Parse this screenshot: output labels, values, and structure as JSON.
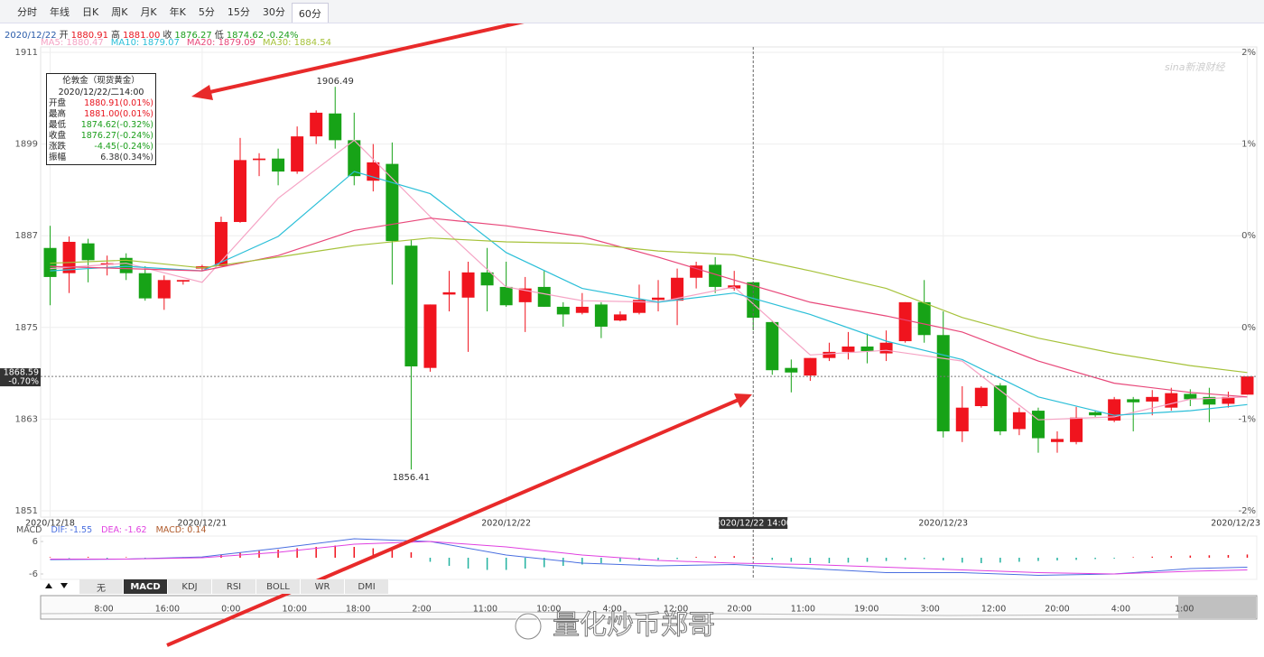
{
  "tabs": [
    "分时",
    "年线",
    "日K",
    "周K",
    "月K",
    "年K",
    "5分",
    "15分",
    "30分",
    "60分"
  ],
  "active_tab": 9,
  "info_line": [
    {
      "text": "2020/12/22",
      "color": "#2a5caa"
    },
    {
      "text": "开",
      "color": "#333333"
    },
    {
      "text": "1880.91",
      "color": "#e8141e"
    },
    {
      "text": "高",
      "color": "#333333"
    },
    {
      "text": "1881.00",
      "color": "#e8141e"
    },
    {
      "text": "收",
      "color": "#333333"
    },
    {
      "text": "1876.27",
      "color": "#1a9e1a"
    },
    {
      "text": "低",
      "color": "#333333"
    },
    {
      "text": "1874.62",
      "color": "#1a9e1a"
    },
    {
      "text": "-0.24%",
      "color": "#1a9e1a"
    }
  ],
  "tooltip": {
    "title": "伦敦金（现货黄金）",
    "time": "2020/12/22/二14:00",
    "rows": [
      {
        "label": "开盘",
        "value": "1880.91(0.01%)",
        "color": "#e8141e"
      },
      {
        "label": "最高",
        "value": "1881.00(0.01%)",
        "color": "#e8141e"
      },
      {
        "label": "最低",
        "value": "1874.62(-0.32%)",
        "color": "#1a9e1a"
      },
      {
        "label": "收盘",
        "value": "1876.27(-0.24%)",
        "color": "#1a9e1a"
      },
      {
        "label": "涨跌",
        "value": "-4.45(-0.24%)",
        "color": "#1a9e1a"
      },
      {
        "label": "振幅",
        "value": "6.38(0.34%)",
        "color": "#333333"
      }
    ]
  },
  "indicator_tabs": [
    "无",
    "MACD",
    "KDJ",
    "RSI",
    "BOLL",
    "WR",
    "DMI"
  ],
  "active_indicator": 1,
  "navigator": {
    "labels": [
      "8:00",
      "16:00",
      "0:00",
      "10:00",
      "18:00",
      "2:00",
      "11:00",
      "10:00",
      "4:00",
      "12:00",
      "20:00",
      "11:00",
      "19:00",
      "3:00",
      "12:00",
      "20:00",
      "4:00",
      "1:00"
    ]
  },
  "watermarks": {
    "source": "sina新浪财经",
    "author": "量化炒币郑哥"
  },
  "chart_data": [
    {
      "type": "candlestick",
      "up_color": "#f0141e",
      "down_color": "#17a317",
      "xlim": [
        -0.5,
        63.5
      ],
      "ylim": [
        1851,
        1911
      ],
      "yticks": [
        1911,
        1899,
        1887,
        1875,
        1863,
        1851
      ],
      "right_labels": [
        "2%",
        "1%",
        "0%",
        "0%",
        "-1%",
        "-2%"
      ],
      "grid": true,
      "xticks": [
        {
          "value": 0,
          "label": "2020/12/18"
        },
        {
          "value": 8,
          "label": "2020/12/21"
        },
        {
          "value": 24,
          "label": "2020/12/22"
        },
        {
          "value": 47,
          "label": "2020/12/23"
        },
        {
          "value": 63,
          "label": "2020/12/23"
        }
      ],
      "crosshair": {
        "index": 37,
        "label": "2020/12/22 14:00"
      },
      "last_change": "-0.70%",
      "max_index": 15,
      "min_index": 19,
      "open": [
        1885.4,
        1882.1,
        1886.0,
        1883.2,
        1884.1,
        1882.1,
        1878.8,
        1881.0,
        1882.7,
        1883.0,
        1888.8,
        1896.9,
        1897.1,
        1895.4,
        1900.0,
        1903.0,
        1899.5,
        1894.2,
        1896.4,
        1885.7,
        1869.7,
        1879.3,
        1878.9,
        1882.2,
        1880.3,
        1878.3,
        1880.3,
        1877.7,
        1876.9,
        1878.0,
        1875.9,
        1876.9,
        1878.6,
        1878.5,
        1881.5,
        1883.2,
        1880.1,
        1880.91,
        1875.7,
        1869.7,
        1868.7,
        1871.0,
        1871.8,
        1872.5,
        1871.6,
        1873.2,
        1878.3,
        1874.0,
        1861.4,
        1864.7,
        1867.4,
        1861.7,
        1864.1,
        1860.0,
        1860.0,
        1863.9,
        1862.8,
        1865.6,
        1865.3,
        1864.5,
        1866.3,
        1865.9,
        1865.0,
        1866.2
      ],
      "high": [
        1888.3,
        1886.9,
        1886.6,
        1884.4,
        1884.7,
        1883.0,
        1881.8,
        1881.2,
        1883.2,
        1889.5,
        1899.8,
        1897.8,
        1898.4,
        1901.3,
        1903.4,
        1906.49,
        1903.1,
        1899.0,
        1899.2,
        1886.5,
        1878.0,
        1882.4,
        1883.6,
        1885.4,
        1883.6,
        1881.6,
        1882.4,
        1878.3,
        1879.5,
        1878.3,
        1877.1,
        1880.6,
        1881.2,
        1882.7,
        1883.6,
        1884.2,
        1882.4,
        1881.0,
        1875.9,
        1870.8,
        1871.0,
        1873.0,
        1874.4,
        1874.2,
        1874.6,
        1878.3,
        1881.2,
        1877.1,
        1867.3,
        1867.3,
        1867.7,
        1864.5,
        1864.5,
        1861.4,
        1864.6,
        1864.1,
        1865.9,
        1865.9,
        1866.8,
        1867.1,
        1866.9,
        1867.1,
        1866.6,
        1868.59
      ],
      "low": [
        1877.9,
        1879.5,
        1880.9,
        1881.8,
        1881.2,
        1878.5,
        1877.3,
        1880.6,
        1882.4,
        1883.0,
        1888.7,
        1894.8,
        1893.6,
        1895.1,
        1899.0,
        1898.4,
        1893.6,
        1892.8,
        1880.6,
        1856.41,
        1869.2,
        1877.1,
        1871.8,
        1877.1,
        1877.7,
        1874.4,
        1877.7,
        1875.1,
        1876.7,
        1873.6,
        1875.8,
        1876.7,
        1877.1,
        1875.3,
        1880.1,
        1879.5,
        1879.8,
        1874.62,
        1868.8,
        1866.5,
        1868.0,
        1870.6,
        1870.8,
        1870.3,
        1870.6,
        1873.0,
        1873.0,
        1860.6,
        1860.0,
        1864.5,
        1860.9,
        1860.9,
        1858.6,
        1858.6,
        1859.7,
        1863.3,
        1862.6,
        1861.4,
        1863.5,
        1864.1,
        1864.7,
        1862.6,
        1864.5,
        1866.2
      ],
      "close": [
        1881.6,
        1886.2,
        1883.8,
        1883.4,
        1882.1,
        1878.8,
        1881.2,
        1881.2,
        1883.0,
        1888.8,
        1896.9,
        1897.1,
        1895.4,
        1900.0,
        1903.1,
        1899.5,
        1894.8,
        1896.6,
        1886.3,
        1869.9,
        1878.0,
        1879.6,
        1882.2,
        1880.5,
        1877.9,
        1880.1,
        1877.7,
        1876.7,
        1877.7,
        1875.1,
        1876.7,
        1878.6,
        1878.9,
        1881.5,
        1883.1,
        1880.3,
        1880.5,
        1876.27,
        1869.4,
        1869.1,
        1871.0,
        1871.8,
        1872.5,
        1871.9,
        1873.0,
        1878.3,
        1874.0,
        1861.4,
        1864.5,
        1867.1,
        1861.4,
        1863.9,
        1860.5,
        1860.4,
        1863.2,
        1863.5,
        1865.6,
        1865.2,
        1865.9,
        1866.4,
        1865.6,
        1864.9,
        1865.9,
        1868.59
      ],
      "series": [
        {
          "label": "MA5: 1880.47",
          "color": "#f5a3c4",
          "x": [
            0,
            4,
            8,
            12,
            16,
            20,
            24,
            28,
            32,
            36,
            40,
            44,
            48,
            52,
            56,
            60,
            63
          ],
          "values": [
            1882.7,
            1883.4,
            1880.9,
            1891.9,
            1899.5,
            1889.5,
            1880.3,
            1878.5,
            1878.3,
            1880.3,
            1871.4,
            1872.0,
            1870.6,
            1862.9,
            1863.3,
            1865.6,
            1865.9
          ]
        },
        {
          "label": "MA10: 1879.07",
          "color": "#2bbfd8",
          "x": [
            0,
            4,
            8,
            12,
            16,
            20,
            24,
            28,
            32,
            36,
            40,
            44,
            48,
            52,
            56,
            60,
            63
          ],
          "values": [
            1882.4,
            1883.0,
            1882.4,
            1886.9,
            1895.4,
            1892.5,
            1884.8,
            1880.1,
            1878.3,
            1879.5,
            1876.7,
            1873.2,
            1870.8,
            1865.9,
            1863.5,
            1864.1,
            1864.9
          ]
        },
        {
          "label": "MA20: 1879.09",
          "color": "#e8487a",
          "x": [
            0,
            4,
            8,
            12,
            16,
            20,
            24,
            28,
            32,
            36,
            40,
            44,
            48,
            52,
            56,
            60,
            63
          ],
          "values": [
            1883.0,
            1882.7,
            1882.4,
            1884.4,
            1887.7,
            1889.3,
            1888.3,
            1886.9,
            1884.2,
            1881.2,
            1878.3,
            1876.5,
            1874.4,
            1870.6,
            1867.7,
            1866.5,
            1865.9
          ]
        },
        {
          "label": "MA30: 1884.54",
          "color": "#a6c23a",
          "x": [
            0,
            4,
            8,
            12,
            16,
            20,
            24,
            28,
            32,
            36,
            40,
            44,
            48,
            52,
            56,
            60,
            63
          ],
          "values": [
            1883.4,
            1883.8,
            1882.8,
            1884.2,
            1885.7,
            1886.7,
            1886.2,
            1886.0,
            1885.0,
            1884.5,
            1882.4,
            1880.1,
            1876.3,
            1873.6,
            1871.6,
            1870.0,
            1869.1
          ]
        }
      ]
    },
    {
      "type": "macd",
      "legend": [
        {
          "text": "MACD",
          "color": "#555555"
        },
        {
          "text": "DIF: -1.55",
          "color": "#4a6fe0"
        },
        {
          "text": "DEA: -1.62",
          "color": "#e040e0"
        },
        {
          "text": "MACD: 0.14",
          "color": "#b05a2a"
        }
      ],
      "xlim": [
        -0.5,
        63.5
      ],
      "ylim": [
        -8,
        8
      ],
      "yticks": [
        6,
        -6
      ],
      "up_color": "#f0141e",
      "down_color": "#22b2a0",
      "hist": [
        0.2,
        -0.2,
        0.3,
        -0.3,
        0.2,
        -0.4,
        -0.3,
        0.2,
        0.3,
        1.0,
        2.0,
        2.5,
        3.0,
        3.5,
        4.0,
        4.5,
        4.0,
        3.5,
        3.0,
        2.0,
        -1.5,
        -3.0,
        -4.0,
        -4.5,
        -4.5,
        -4.0,
        -3.5,
        -3.0,
        -2.5,
        -2.0,
        -1.5,
        -1.0,
        -0.8,
        -0.5,
        0.3,
        0.5,
        0.6,
        0.14,
        -0.8,
        -1.5,
        -2.0,
        -2.0,
        -1.8,
        -1.5,
        -1.2,
        -0.8,
        -0.5,
        -1.0,
        -1.8,
        -2.0,
        -1.8,
        -1.5,
        -1.2,
        -1.0,
        -0.8,
        -0.5,
        -0.3,
        0.2,
        0.4,
        0.6,
        0.8,
        0.9,
        1.0,
        1.2
      ],
      "series": [
        {
          "color": "#4a6fe0",
          "x": [
            0,
            4,
            8,
            12,
            16,
            20,
            24,
            28,
            32,
            36,
            40,
            44,
            48,
            52,
            56,
            60,
            63
          ],
          "values": [
            -0.7,
            -0.5,
            0.3,
            3.5,
            7.0,
            6.0,
            1.0,
            -2.0,
            -3.0,
            -2.5,
            -4.0,
            -5.5,
            -5.5,
            -6.5,
            -6.0,
            -4.0,
            -3.5
          ]
        },
        {
          "color": "#e040e0",
          "x": [
            0,
            4,
            8,
            12,
            16,
            20,
            24,
            28,
            32,
            36,
            40,
            44,
            48,
            52,
            56,
            60,
            63
          ],
          "values": [
            -0.5,
            -0.5,
            0,
            2.0,
            5.0,
            6.0,
            4.0,
            1.0,
            -1.0,
            -2.0,
            -2.5,
            -3.5,
            -4.5,
            -5.5,
            -6.0,
            -5.0,
            -4.5
          ]
        }
      ]
    }
  ]
}
